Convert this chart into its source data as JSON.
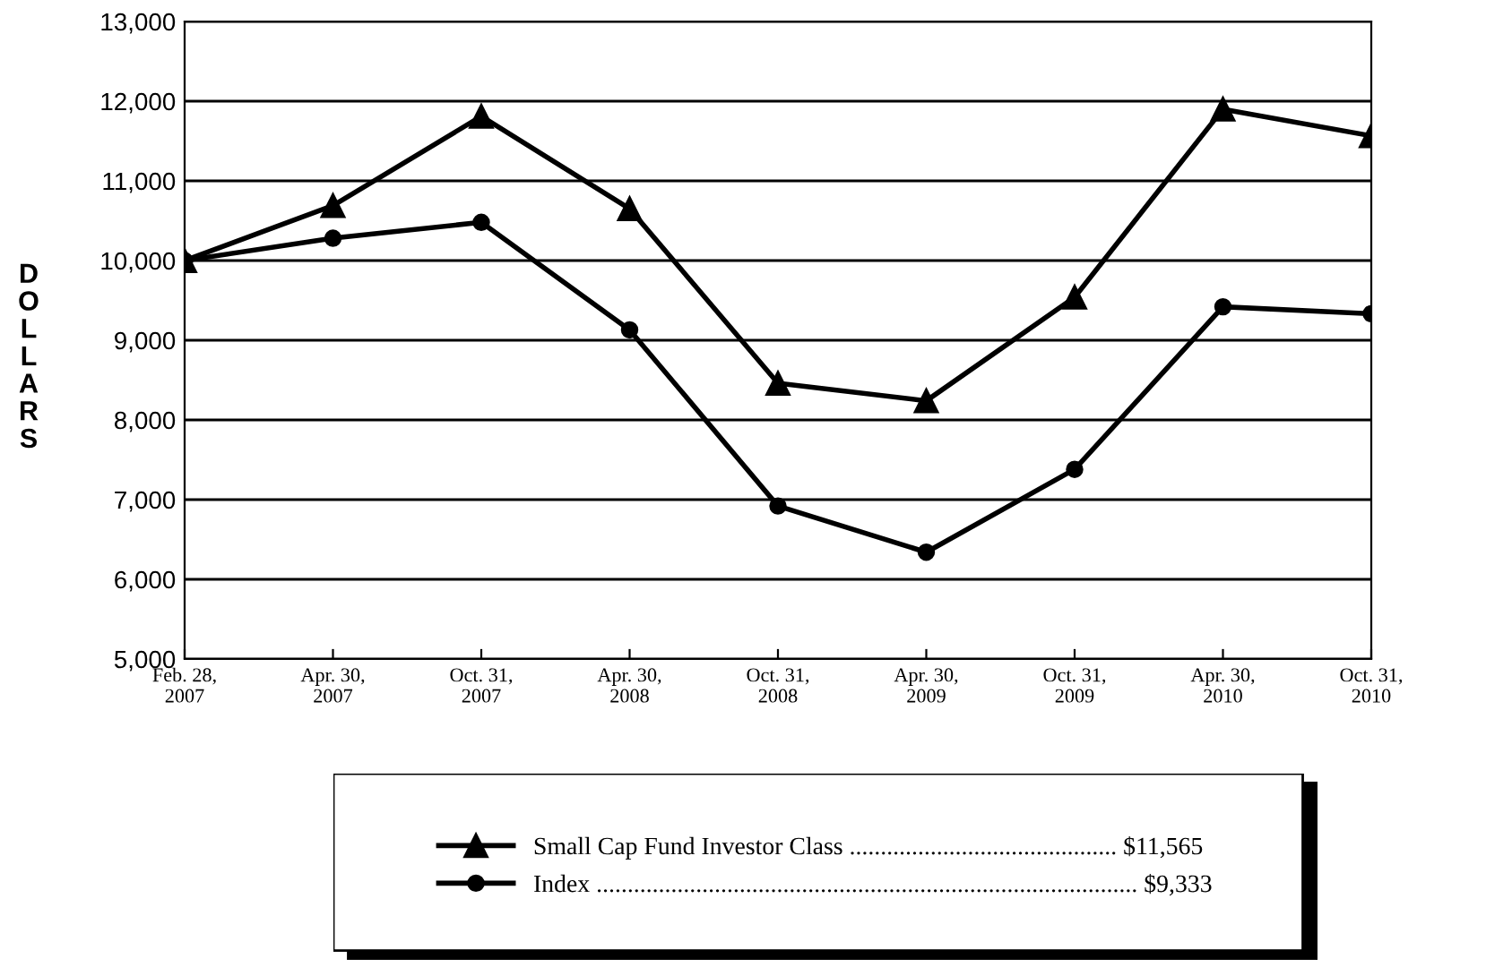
{
  "chart_data": {
    "type": "line",
    "ylabel": "DOLLARS",
    "categories": [
      "Feb. 28,\n2007",
      "Apr. 30,\n2007",
      "Oct. 31,\n2007",
      "Apr. 30,\n2008",
      "Oct. 31,\n2008",
      "Apr. 30,\n2009",
      "Oct. 31,\n2009",
      "Apr. 30,\n2010",
      "Oct. 31,\n2010"
    ],
    "series": [
      {
        "name": "Small Cap Fund Investor Class ........................................... $11,565",
        "color": "#000000",
        "marker": "triangle",
        "values": [
          10000,
          10690,
          11810,
          10650,
          8460,
          8240,
          9540,
          11900,
          11565
        ]
      },
      {
        "name": "Index ....................................................................................... $9,333",
        "color": "#000000",
        "marker": "circle",
        "values": [
          10000,
          10280,
          10480,
          9130,
          6920,
          6340,
          7380,
          9420,
          9333
        ]
      }
    ],
    "ylim": [
      5000,
      13000
    ],
    "yticks": [
      {
        "value": 5000,
        "label": "5,000"
      },
      {
        "value": 6000,
        "label": "6,000"
      },
      {
        "value": 7000,
        "label": "7,000"
      },
      {
        "value": 8000,
        "label": "8,000"
      },
      {
        "value": 9000,
        "label": "9,000"
      },
      {
        "value": 10000,
        "label": "10,000"
      },
      {
        "value": 11000,
        "label": "11,000"
      },
      {
        "value": 12000,
        "label": "12,000"
      },
      {
        "value": 13000,
        "label": "13,000"
      }
    ],
    "grid": "y",
    "legend": "bottom",
    "line_style": "solid"
  }
}
